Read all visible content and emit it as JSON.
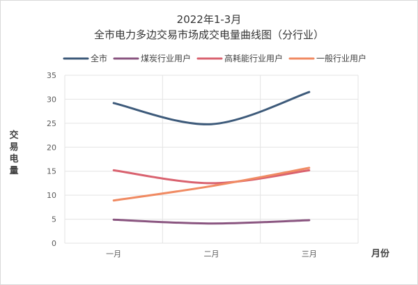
{
  "chart_data": {
    "type": "line",
    "title": "2022年1-3月",
    "subtitle": "全市电力多边交易市场成交电量曲线图（分行业）",
    "xlabel": "月份",
    "ylabel": "交易电量",
    "categories": [
      "一月",
      "二月",
      "三月"
    ],
    "ylim": [
      0,
      35
    ],
    "yticks": [
      0,
      5,
      10,
      15,
      20,
      25,
      30,
      35
    ],
    "grid": true,
    "legend": "top",
    "series": [
      {
        "name": "全市",
        "values": [
          29.2,
          24.8,
          31.5
        ],
        "color": "#3d5a7a"
      },
      {
        "name": "煤炭行业用户",
        "values": [
          4.9,
          4.1,
          4.8
        ],
        "color": "#8a5580"
      },
      {
        "name": "高耗能行业用户",
        "values": [
          15.2,
          12.5,
          15.2
        ],
        "color": "#d9626f"
      },
      {
        "name": "一般行业用户",
        "values": [
          8.9,
          11.9,
          15.7
        ],
        "color": "#f08a62"
      }
    ]
  }
}
